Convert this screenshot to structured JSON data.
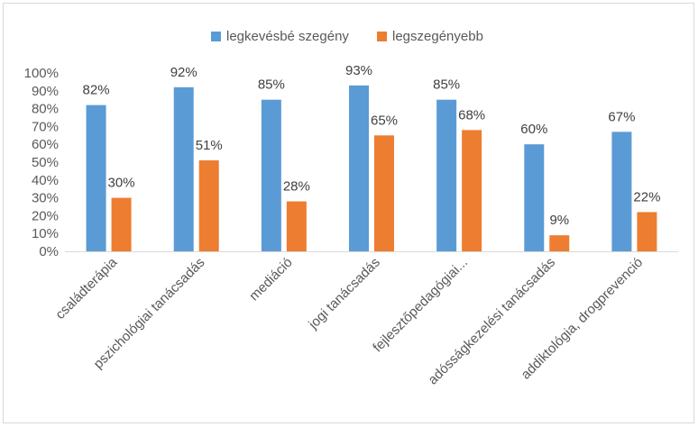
{
  "chart_data": {
    "type": "bar",
    "categories": [
      "családterápia",
      "pszichológiai tanácsadás",
      "mediáció",
      "jogi tanácsadás",
      "fejlesztőpedagógiai...",
      "adósságkezelési tanácsadás",
      "addiktológia, drogprevenció"
    ],
    "series": [
      {
        "name": "legkevésbé szegény",
        "color": "#5B9BD5",
        "values": [
          82,
          92,
          85,
          93,
          85,
          60,
          67
        ]
      },
      {
        "name": "legszegényebb",
        "color": "#ED7D31",
        "values": [
          30,
          51,
          28,
          65,
          68,
          9,
          22
        ]
      }
    ],
    "data_label_suffix": "%",
    "ylim": [
      0,
      100
    ],
    "yticks": [
      "0%",
      "10%",
      "20%",
      "30%",
      "40%",
      "50%",
      "60%",
      "70%",
      "80%",
      "90%",
      "100%"
    ],
    "grid": false,
    "legend_position": "top"
  }
}
